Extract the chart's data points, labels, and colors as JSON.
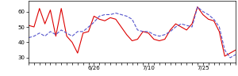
{
  "red_y": [
    51,
    50,
    62,
    52,
    61,
    44,
    62,
    44,
    40,
    33,
    46,
    47,
    57,
    55,
    54,
    56,
    55,
    50,
    45,
    41,
    42,
    47,
    46,
    42,
    41,
    42,
    48,
    52,
    50,
    48,
    52,
    63,
    58,
    55,
    54,
    47,
    31,
    33,
    35
  ],
  "blue_y": [
    43,
    44,
    46,
    44,
    47,
    45,
    48,
    46,
    44,
    47,
    47,
    50,
    53,
    57,
    58,
    58,
    59,
    58,
    57,
    55,
    48,
    47,
    47,
    45,
    44,
    45,
    47,
    50,
    52,
    51,
    50,
    63,
    60,
    58,
    55,
    50,
    35,
    30,
    32
  ],
  "xtick_positions": [
    12,
    22,
    32
  ],
  "xtick_labels": [
    "6/26",
    "7/10",
    "7/25"
  ],
  "ytick_positions": [
    30,
    40,
    50,
    60
  ],
  "ytick_labels": [
    "30",
    "40",
    "50",
    "60"
  ],
  "ylim": [
    27,
    67
  ],
  "xlim": [
    0,
    38
  ],
  "red_color": "#dd0000",
  "blue_color": "#5555cc",
  "linewidth": 0.8,
  "figsize": [
    3.0,
    0.96
  ],
  "dpi": 100
}
